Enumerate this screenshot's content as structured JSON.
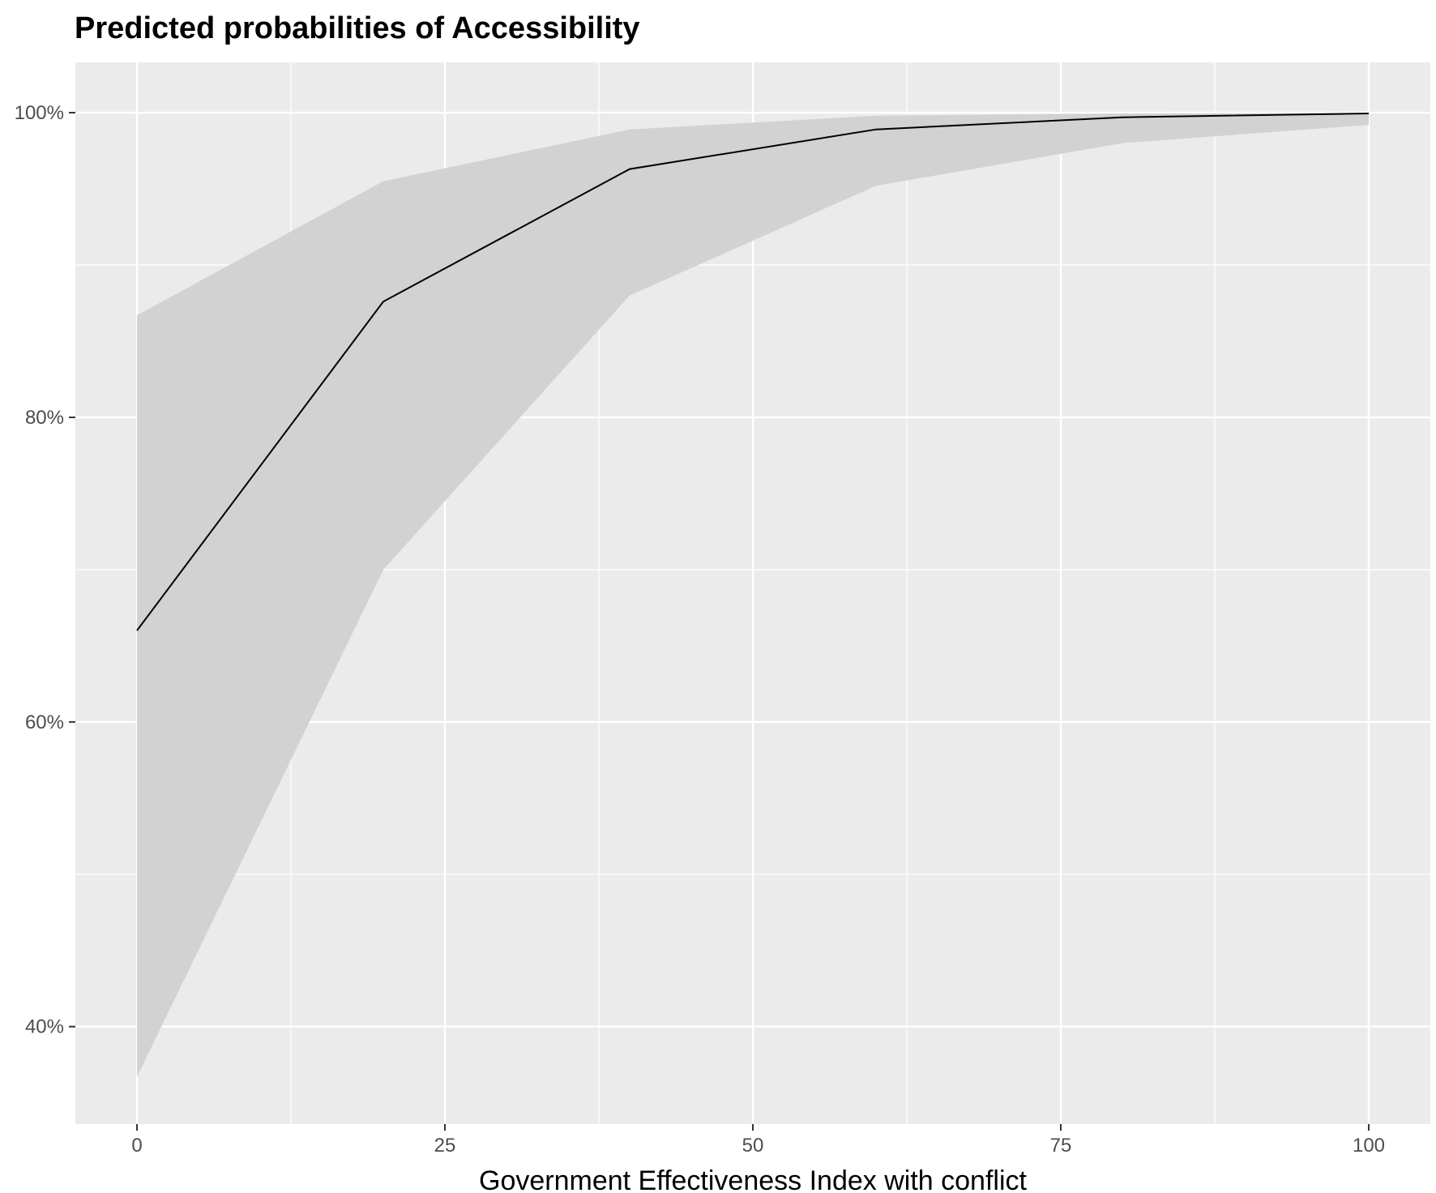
{
  "chart_data": {
    "type": "line",
    "title": "Predicted probabilities of Accessibility",
    "xlabel": "Government Effectiveness Index with conflict",
    "ylabel": "",
    "x": [
      0,
      20,
      40,
      60,
      80,
      100
    ],
    "series": [
      {
        "values": [
          0.66,
          0.876,
          0.963,
          0.989,
          0.997,
          0.9995
        ],
        "ci_low": [
          0.367,
          0.7,
          0.88,
          0.952,
          0.98,
          0.992
        ],
        "ci_high": [
          0.867,
          0.955,
          0.989,
          0.998,
          0.9995,
          0.9999
        ]
      }
    ],
    "xlim": [
      -5,
      105
    ],
    "ylim": [
      0.336,
      1.033
    ],
    "x_ticks": [
      0,
      25,
      50,
      75,
      100
    ],
    "x_tick_labels": [
      "0",
      "25",
      "50",
      "75",
      "100"
    ],
    "y_ticks": [
      0.4,
      0.6,
      0.8,
      1.0
    ],
    "y_tick_labels": [
      "40%",
      "60%",
      "80%",
      "100%"
    ],
    "grid": true,
    "legend": "none",
    "colors": {
      "panel": "#ebebeb",
      "grid": "#ffffff",
      "ribbon": "#d2d2d2",
      "line": "#000000"
    }
  }
}
